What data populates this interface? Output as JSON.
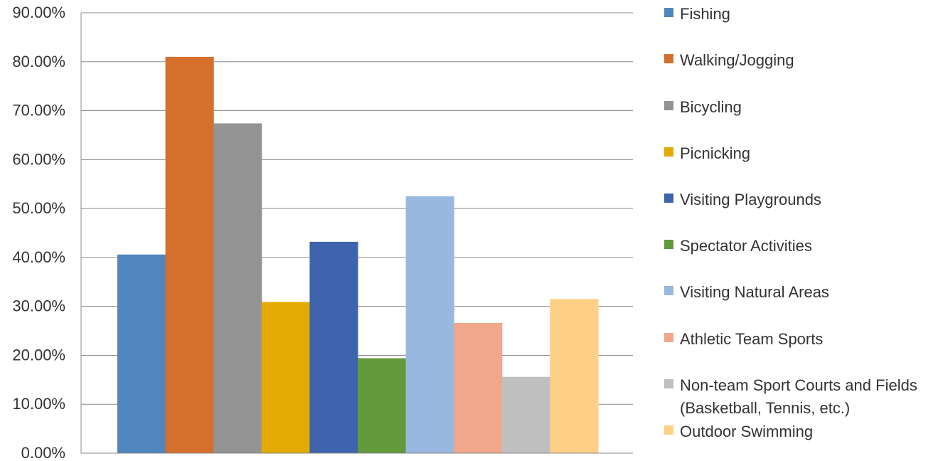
{
  "chart_data": {
    "type": "bar",
    "title": "",
    "xlabel": "",
    "ylabel": "",
    "ylim": [
      0,
      90
    ],
    "yticks": [
      0,
      10,
      20,
      30,
      40,
      50,
      60,
      70,
      80,
      90
    ],
    "ytick_labels": [
      "0.00%",
      "10.00%",
      "20.00%",
      "30.00%",
      "40.00%",
      "50.00%",
      "60.00%",
      "70.00%",
      "80.00%",
      "90.00%"
    ],
    "grid": true,
    "legend_position": "right",
    "series": [
      {
        "name": "Fishing",
        "value": 40.6,
        "color": "#4F86BD"
      },
      {
        "name": "Walking/Jogging",
        "value": 81.0,
        "color": "#D4702C"
      },
      {
        "name": "Bicycling",
        "value": 67.4,
        "color": "#939393"
      },
      {
        "name": "Picnicking",
        "value": 30.9,
        "color": "#E2AA02"
      },
      {
        "name": "Visiting Playgrounds",
        "value": 43.2,
        "color": "#3D64AC"
      },
      {
        "name": "Spectator Activities",
        "value": 19.4,
        "color": "#62993B"
      },
      {
        "name": "Visiting Natural Areas",
        "value": 52.5,
        "color": "#98B8E0"
      },
      {
        "name": "Athletic Team Sports",
        "value": 26.6,
        "color": "#F0A78A"
      },
      {
        "name": "Non-team Sport Courts and Fields\n(Basketball, Tennis, etc.)",
        "value": 15.6,
        "color": "#BFBFBF"
      },
      {
        "name": "Outdoor Swimming",
        "value": 31.5,
        "color": "#FDD085"
      }
    ]
  }
}
